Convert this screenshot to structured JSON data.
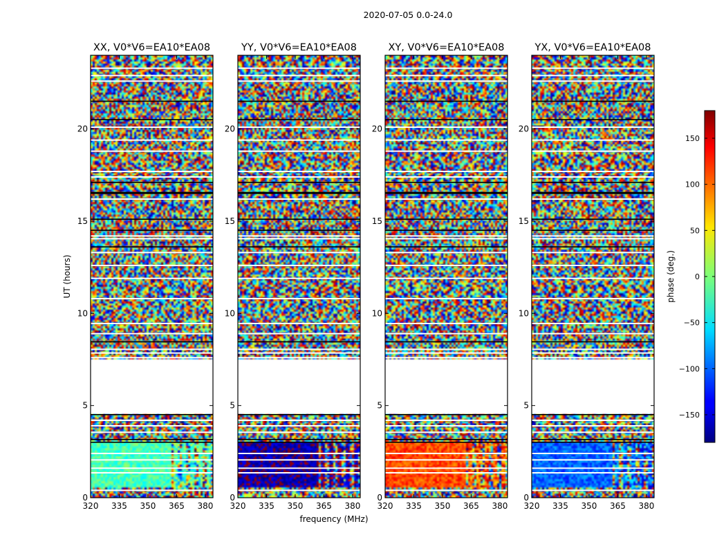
{
  "chart_data": {
    "type": "heatmap",
    "figure_title": "2020-07-05 0.0-24.0",
    "xlabel": "frequency (MHz)",
    "ylabel": "UT (hours)",
    "xlim": [
      320,
      384
    ],
    "ylim": [
      0,
      24
    ],
    "xticks": [
      "320",
      "335",
      "350",
      "365",
      "380"
    ],
    "yticks": [
      "0",
      "5",
      "10",
      "15",
      "20"
    ],
    "colorbar": {
      "label": "phase (deg.)",
      "range": [
        -180,
        180
      ],
      "ticks": [
        "150",
        "100",
        "50",
        "0",
        "−50",
        "−100",
        "−150"
      ],
      "colormap": "jet"
    },
    "flagged_time_ranges_hours": [
      [
        4.55,
        7.45
      ]
    ],
    "panels": [
      {
        "title": "XX, V0*V6=EA10*EA08",
        "calibrator_phase_deg": -20,
        "break_freq_mhz": 363
      },
      {
        "title": "YY, V0*V6=EA10*EA08",
        "calibrator_phase_deg": -165,
        "break_freq_mhz": 363
      },
      {
        "title": "XY, V0*V6=EA10*EA08",
        "calibrator_phase_deg": 110,
        "break_freq_mhz": 363
      },
      {
        "title": "YX, V0*V6=EA10*EA08",
        "calibrator_phase_deg": -100,
        "break_freq_mhz": 363
      }
    ]
  }
}
